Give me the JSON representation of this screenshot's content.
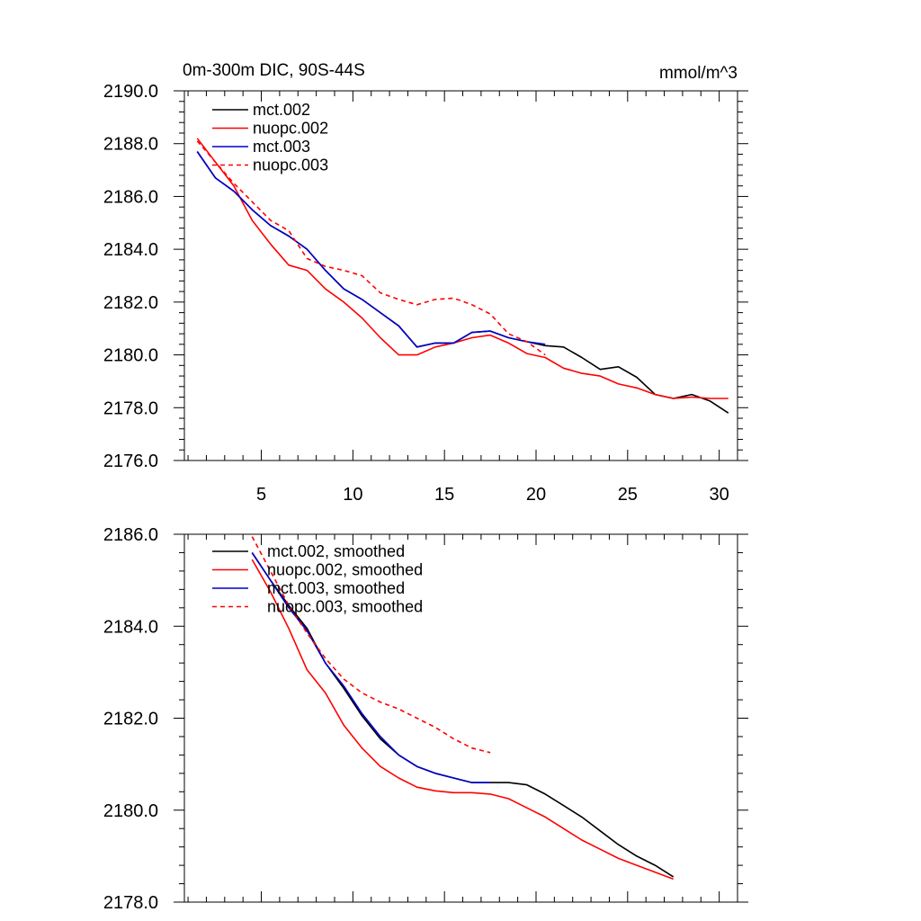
{
  "chart_data": [
    {
      "type": "line",
      "title": "0m-300m DIC, 90S-44S",
      "units": "mmol/m^3",
      "xlabel": "",
      "ylabel": "",
      "xlim": [
        0.8,
        31
      ],
      "ylim": [
        2176,
        2190
      ],
      "xticks": [
        5,
        10,
        15,
        20,
        25,
        30
      ],
      "yticks": [
        2176,
        2178,
        2180,
        2182,
        2184,
        2186,
        2188,
        2190
      ],
      "ytick_labels": [
        "2176.0",
        "2178.0",
        "2180.0",
        "2182.0",
        "2184.0",
        "2186.0",
        "2188.0",
        "2190.0"
      ],
      "legend_position": "top-left",
      "series": [
        {
          "name": "mct.002",
          "color": "#000000",
          "dash": "solid",
          "x": [
            1.5,
            2.5,
            3.5,
            4.5,
            5.5,
            6.5,
            7.5,
            8.5,
            9.5,
            10.5,
            11.5,
            12.5,
            13.5,
            14.5,
            15.5,
            16.5,
            17.5,
            18.5,
            19.5,
            20.5,
            21.5,
            22.5,
            23.5,
            24.5,
            25.5,
            26.5,
            27.5,
            28.5,
            29.5,
            30.5
          ],
          "y": [
            2187.7,
            2186.7,
            2186.2,
            2185.5,
            2184.9,
            2184.5,
            2184.0,
            2183.2,
            2182.5,
            2182.1,
            2181.6,
            2181.1,
            2180.3,
            2180.45,
            2180.45,
            2180.85,
            2180.9,
            2180.65,
            2180.5,
            2180.35,
            2180.3,
            2179.9,
            2179.45,
            2179.55,
            2179.15,
            2178.5,
            2178.35,
            2178.5,
            2178.25,
            2177.8
          ]
        },
        {
          "name": "nuopc.002",
          "color": "#ff0000",
          "dash": "solid",
          "x": [
            1.5,
            2.5,
            3.5,
            4.5,
            5.5,
            6.5,
            7.5,
            8.5,
            9.5,
            10.5,
            11.5,
            12.5,
            13.5,
            14.5,
            15.5,
            16.5,
            17.5,
            18.5,
            19.5,
            20.5,
            21.5,
            22.5,
            23.5,
            24.5,
            25.5,
            26.5,
            27.5,
            28.5,
            29.5,
            30.5
          ],
          "y": [
            2188.2,
            2187.3,
            2186.4,
            2185.1,
            2184.2,
            2183.4,
            2183.2,
            2182.5,
            2182.0,
            2181.4,
            2180.65,
            2180.0,
            2180.0,
            2180.3,
            2180.45,
            2180.65,
            2180.75,
            2180.45,
            2180.05,
            2179.9,
            2179.5,
            2179.3,
            2179.2,
            2178.9,
            2178.75,
            2178.5,
            2178.35,
            2178.4,
            2178.35,
            2178.35
          ]
        },
        {
          "name": "mct.003",
          "color": "#0000cc",
          "dash": "solid",
          "x": [
            1.5,
            2.5,
            3.5,
            4.5,
            5.5,
            6.5,
            7.5,
            8.5,
            9.5,
            10.5,
            11.5,
            12.5,
            13.5,
            14.5,
            15.5,
            16.5,
            17.5,
            18.5,
            19.5,
            20.5
          ],
          "y": [
            2187.7,
            2186.7,
            2186.2,
            2185.5,
            2184.9,
            2184.5,
            2184.0,
            2183.2,
            2182.5,
            2182.1,
            2181.6,
            2181.1,
            2180.3,
            2180.45,
            2180.45,
            2180.85,
            2180.9,
            2180.65,
            2180.5,
            2180.4
          ]
        },
        {
          "name": "nuopc.003",
          "color": "#ff0000",
          "dash": "dashed",
          "x": [
            1.5,
            2.5,
            3.5,
            4.5,
            5.5,
            6.5,
            7.5,
            8.5,
            9.5,
            10.5,
            11.5,
            12.5,
            13.5,
            14.5,
            15.5,
            16.5,
            17.5,
            18.5,
            19.5,
            20.5
          ],
          "y": [
            2188.1,
            2187.3,
            2186.5,
            2185.8,
            2185.1,
            2184.7,
            2183.65,
            2183.35,
            2183.2,
            2183.0,
            2182.35,
            2182.1,
            2181.9,
            2182.1,
            2182.15,
            2181.9,
            2181.55,
            2180.8,
            2180.5,
            2180.0
          ]
        }
      ]
    },
    {
      "type": "line",
      "title": "",
      "xlabel": "",
      "ylabel": "",
      "xlim": [
        0.8,
        31
      ],
      "ylim": [
        2178,
        2186
      ],
      "xticks": [
        5,
        10,
        15,
        20,
        25,
        30
      ],
      "yticks": [
        2178,
        2180,
        2182,
        2184,
        2186
      ],
      "ytick_labels": [
        "2178.0",
        "2180.0",
        "2182.0",
        "2184.0",
        "2186.0"
      ],
      "legend_position": "top-left",
      "series": [
        {
          "name": "mct.002, smoothed",
          "color": "#000000",
          "dash": "solid",
          "x": [
            4.5,
            5.5,
            6.5,
            7.5,
            8.5,
            9.5,
            10.5,
            11.5,
            12.5,
            13.5,
            14.5,
            15.5,
            16.5,
            17.5,
            18.5,
            19.5,
            20.5,
            21.5,
            22.5,
            23.5,
            24.5,
            25.5,
            26.5,
            27.5
          ],
          "y": [
            2185.6,
            2185.0,
            2184.45,
            2183.95,
            2183.2,
            2182.65,
            2182.05,
            2181.55,
            2181.2,
            2180.95,
            2180.8,
            2180.7,
            2180.6,
            2180.6,
            2180.6,
            2180.55,
            2180.35,
            2180.1,
            2179.85,
            2179.55,
            2179.25,
            2179.0,
            2178.8,
            2178.55
          ]
        },
        {
          "name": "nuopc.002, smoothed",
          "color": "#ff0000",
          "dash": "solid",
          "x": [
            4.5,
            5.5,
            6.5,
            7.5,
            8.5,
            9.5,
            10.5,
            11.5,
            12.5,
            13.5,
            14.5,
            15.5,
            16.5,
            17.5,
            18.5,
            19.5,
            20.5,
            21.5,
            22.5,
            23.5,
            24.5,
            25.5,
            26.5,
            27.5
          ],
          "y": [
            2185.45,
            2184.75,
            2183.95,
            2183.05,
            2182.55,
            2181.85,
            2181.35,
            2180.95,
            2180.7,
            2180.5,
            2180.42,
            2180.38,
            2180.38,
            2180.35,
            2180.25,
            2180.05,
            2179.85,
            2179.6,
            2179.35,
            2179.15,
            2178.95,
            2178.8,
            2178.65,
            2178.5
          ]
        },
        {
          "name": "mct.003, smoothed",
          "color": "#0000cc",
          "dash": "solid",
          "x": [
            4.5,
            5.5,
            6.5,
            7.5,
            8.5,
            9.5,
            10.5,
            11.5,
            12.5,
            13.5,
            14.5,
            15.5,
            16.5,
            17.5
          ],
          "y": [
            2185.6,
            2185.0,
            2184.4,
            2183.9,
            2183.2,
            2182.7,
            2182.1,
            2181.6,
            2181.2,
            2180.95,
            2180.8,
            2180.7,
            2180.6,
            2180.6
          ]
        },
        {
          "name": "nuopc.003, smoothed",
          "color": "#ff0000",
          "dash": "dashed",
          "x": [
            4.5,
            5.5,
            6.5,
            7.5,
            8.5,
            9.5,
            10.5,
            11.5,
            12.5,
            13.5,
            14.5,
            15.5,
            16.5,
            17.5
          ],
          "y": [
            2185.95,
            2185.2,
            2184.45,
            2183.85,
            2183.3,
            2182.85,
            2182.55,
            2182.35,
            2182.2,
            2182.0,
            2181.8,
            2181.55,
            2181.35,
            2181.25
          ]
        }
      ]
    }
  ]
}
